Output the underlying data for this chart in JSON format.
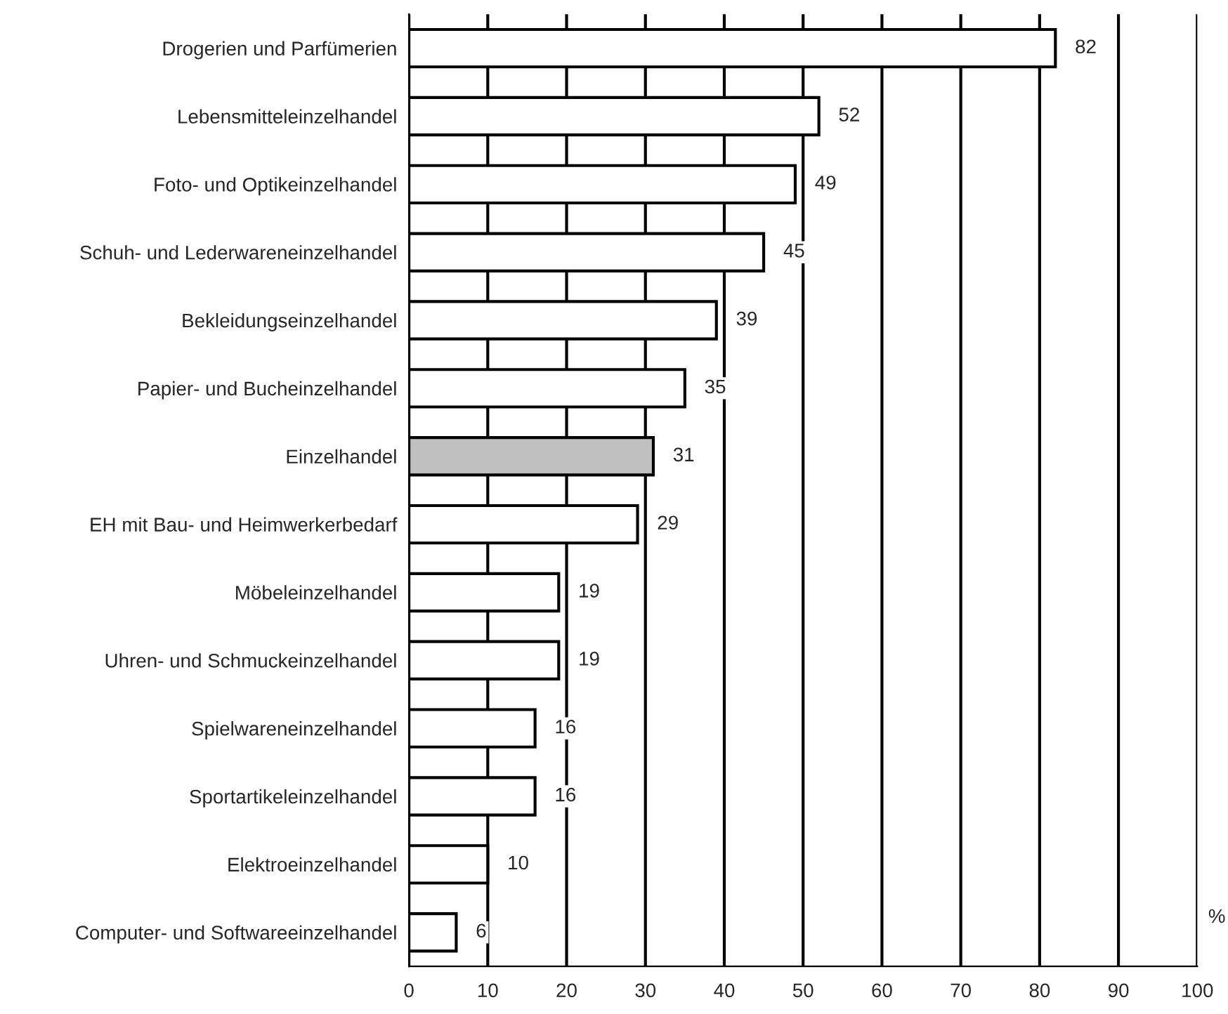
{
  "chart_data": {
    "type": "bar",
    "orientation": "horizontal",
    "categories": [
      "Drogerien und Parfümerien",
      "Lebensmitteleinzelhandel",
      "Foto- und Optikeinzelhandel",
      "Schuh- und Lederwareneinzelhandel",
      "Bekleidungseinzelhandel",
      "Papier- und Bucheinzelhandel",
      "Einzelhandel",
      "EH mit Bau- und Heimwerkerbedarf",
      "Möbeleinzelhandel",
      "Uhren- und Schmuckeinzelhandel",
      "Spielwareneinzelhandel",
      "Sportartikeleinzelhandel",
      "Elektroeinzelhandel",
      "Computer- und Softwareeinzelhandel"
    ],
    "values": [
      82,
      52,
      49,
      45,
      39,
      35,
      31,
      29,
      19,
      19,
      16,
      16,
      10,
      6
    ],
    "colors": [
      "#ffffff",
      "#ffffff",
      "#ffffff",
      "#ffffff",
      "#ffffff",
      "#ffffff",
      "#c0c0c0",
      "#ffffff",
      "#ffffff",
      "#ffffff",
      "#ffffff",
      "#ffffff",
      "#ffffff",
      "#ffffff"
    ],
    "xlim": [
      0,
      100
    ],
    "xticks": [
      0,
      10,
      20,
      30,
      40,
      50,
      60,
      70,
      80,
      90,
      100
    ],
    "grid": "x",
    "data_labels": true,
    "annotations": [
      "%"
    ]
  }
}
